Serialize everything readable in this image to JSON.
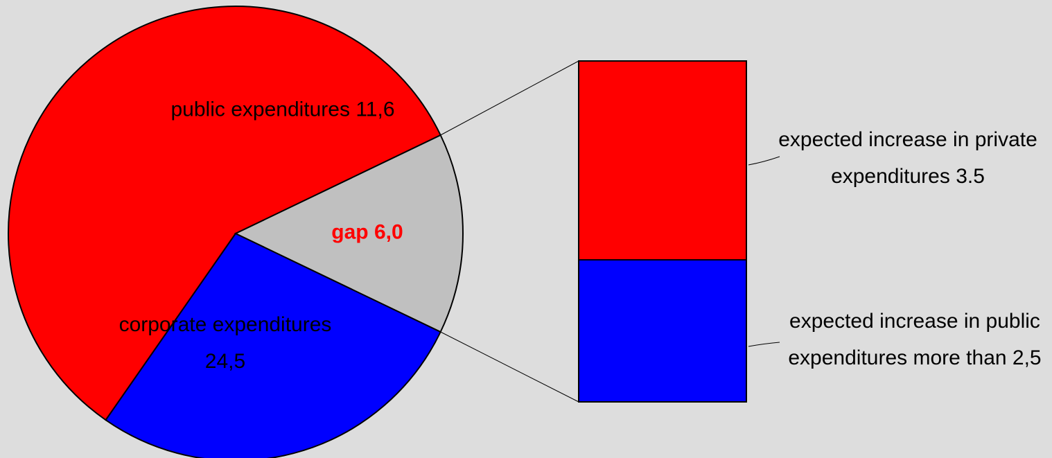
{
  "chart_data": [
    {
      "type": "pie",
      "categories": [
        "corporate expenditures",
        "public expenditures",
        "gap"
      ],
      "values": [
        24.5,
        11.6,
        6.0
      ],
      "value_labels": [
        "24,5",
        "11,6",
        "6,0"
      ],
      "colors": [
        "#ff0000",
        "#0000ff",
        "#c0c0c0"
      ],
      "label_colors": [
        "#000000",
        "#000000",
        "#ff0000"
      ],
      "label_bold": [
        false,
        false,
        true
      ]
    },
    {
      "type": "bar",
      "stacked": true,
      "detail_of": 2,
      "categories": [
        "expected increase in private expenditures",
        "expected increase in public expenditures"
      ],
      "values": [
        3.5,
        2.5
      ],
      "value_labels": [
        "3.5",
        "more than 2,5"
      ],
      "colors": [
        "#ff0000",
        "#0000ff"
      ]
    }
  ]
}
